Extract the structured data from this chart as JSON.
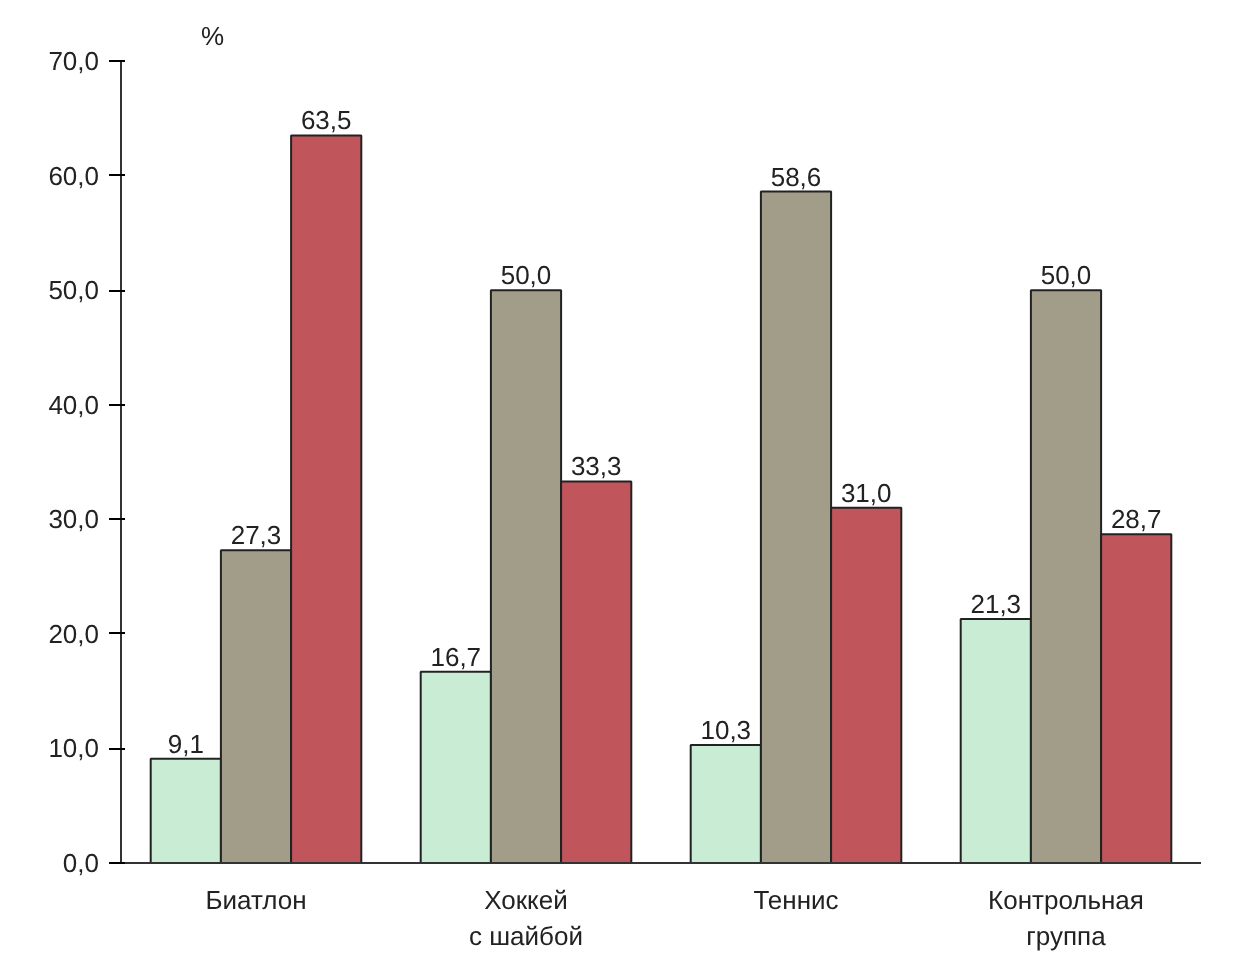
{
  "chart_data": {
    "type": "bar",
    "ylabel": "%",
    "categories": [
      "Биатлон",
      "Хоккей\nс шайбой",
      "Теннис",
      "Контрольная\nгруппа"
    ],
    "series": [
      {
        "color": "#c9ecd5",
        "values": [
          9.1,
          16.7,
          10.3,
          21.3
        ],
        "value_labels": [
          "9,1",
          "16,7",
          "10,3",
          "21,3"
        ]
      },
      {
        "color": "#a19d89",
        "values": [
          27.3,
          50.0,
          58.6,
          50.0
        ],
        "value_labels": [
          "27,3",
          "50,0",
          "58,6",
          "50,0"
        ]
      },
      {
        "color": "#c0555b",
        "values": [
          63.5,
          33.3,
          31.0,
          28.7
        ],
        "value_labels": [
          "63,5",
          "33,3",
          "31,0",
          "28,7"
        ]
      }
    ],
    "ylim": [
      0,
      70
    ],
    "yticks": [
      {
        "value": 0,
        "label": "0,0"
      },
      {
        "value": 10,
        "label": "10,0"
      },
      {
        "value": 20,
        "label": "20,0"
      },
      {
        "value": 30,
        "label": "30,0"
      },
      {
        "value": 40,
        "label": "40,0"
      },
      {
        "value": 50,
        "label": "50,0"
      },
      {
        "value": 60,
        "label": "60,0"
      },
      {
        "value": 70,
        "label": "70,0"
      }
    ],
    "grid": false
  }
}
